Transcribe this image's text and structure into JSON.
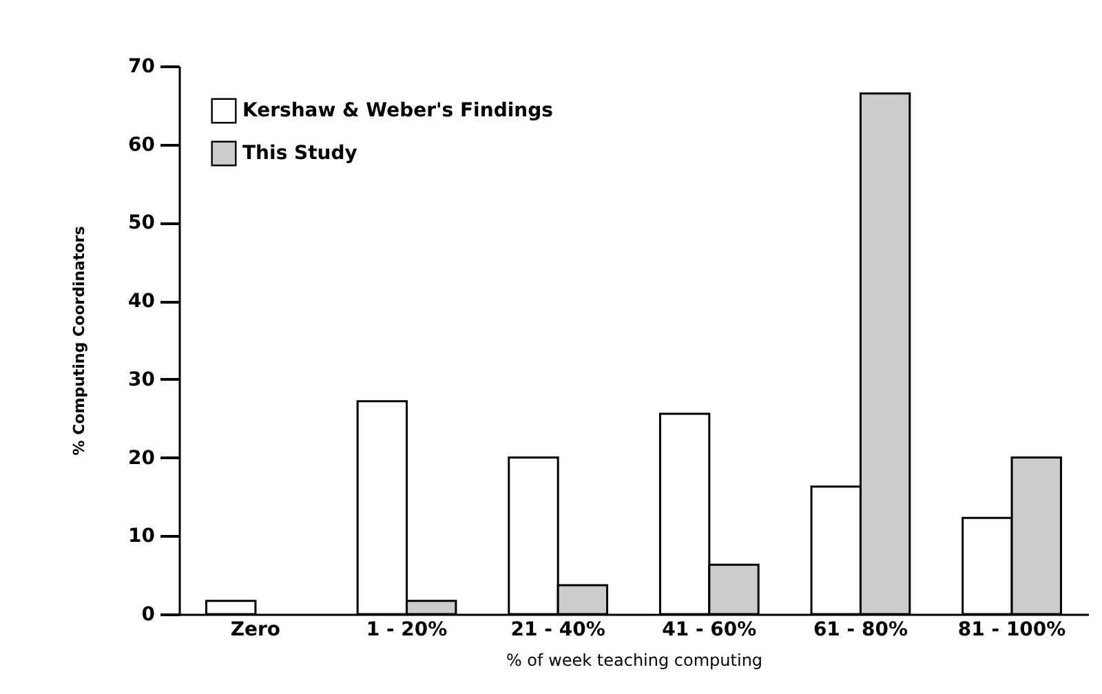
{
  "chart_data": {
    "type": "bar",
    "xlabel": "% of week teaching computing",
    "ylabel": "% Computing Coordinators",
    "categories": [
      "Zero",
      "1 - 20%",
      "21 - 40%",
      "41 - 60%",
      "61 - 80%",
      "81 - 100%"
    ],
    "series": [
      {
        "name": "Kershaw & Weber's Findings",
        "color": "#ffffff",
        "values": [
          1.7,
          27.2,
          20.0,
          25.6,
          16.3,
          12.3
        ]
      },
      {
        "name": "This Study",
        "color": "#cccccc",
        "values": [
          null,
          1.7,
          3.7,
          6.3,
          66.5,
          20.0
        ]
      }
    ],
    "ylim": [
      0,
      70
    ],
    "yticks": [
      0,
      10,
      20,
      30,
      40,
      50,
      60,
      70
    ],
    "grid": false,
    "legend": "top left"
  }
}
